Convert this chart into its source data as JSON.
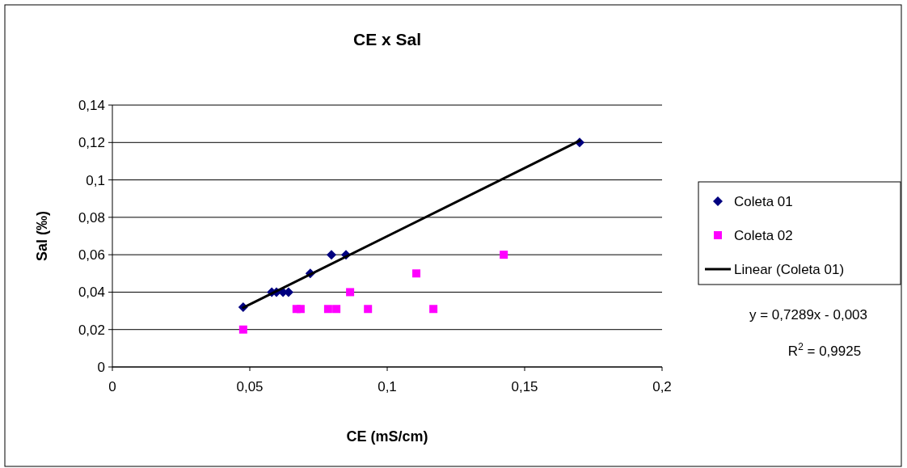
{
  "chart_data": {
    "type": "scatter",
    "title": "CE x Sal",
    "xlabel": "CE (mS/cm)",
    "ylabel": "Sal (‰)",
    "xlim": [
      0,
      0.2
    ],
    "xticks": [
      {
        "value": 0,
        "label": "0"
      },
      {
        "value": 0.05,
        "label": "0,05"
      },
      {
        "value": 0.1,
        "label": "0,1"
      },
      {
        "value": 0.15,
        "label": "0,15"
      },
      {
        "value": 0.2,
        "label": "0,2"
      }
    ],
    "ylim": [
      0,
      0.14
    ],
    "yticks": [
      {
        "value": 0,
        "label": "0"
      },
      {
        "value": 0.02,
        "label": "0,02"
      },
      {
        "value": 0.04,
        "label": "0,04"
      },
      {
        "value": 0.06,
        "label": "0,06"
      },
      {
        "value": 0.08,
        "label": "0,08"
      },
      {
        "value": 0.1,
        "label": "0,1"
      },
      {
        "value": 0.12,
        "label": "0,12"
      },
      {
        "value": 0.14,
        "label": "0,14"
      }
    ],
    "grid": "y",
    "legend": "right",
    "series": [
      {
        "name": "Coleta 01",
        "marker": "diamond",
        "color": "#000080",
        "x": [
          0.0476,
          0.058,
          0.0597,
          0.0621,
          0.0641,
          0.072,
          0.0797,
          0.085,
          0.17
        ],
        "values": [
          0.032,
          0.04,
          0.04,
          0.04,
          0.04,
          0.05,
          0.06,
          0.06,
          0.12
        ]
      },
      {
        "name": "Coleta 02",
        "marker": "square",
        "color": "#ff00ff",
        "x": [
          0.0476,
          0.067,
          0.0685,
          0.0785,
          0.0815,
          0.0865,
          0.093,
          0.1106,
          0.1168,
          0.1424
        ],
        "values": [
          0.02,
          0.031,
          0.031,
          0.031,
          0.031,
          0.04,
          0.031,
          0.05,
          0.031,
          0.06
        ]
      },
      {
        "name": "Linear (Coleta 01)",
        "type": "line",
        "marker": "none",
        "color": "#000000",
        "x": [
          0.0476,
          0.17
        ],
        "values": [
          0.0317,
          0.1209
        ]
      }
    ],
    "annotations": [
      "y = 0,7289x - 0,003",
      "R$^{2}$ = 0,9925"
    ]
  }
}
